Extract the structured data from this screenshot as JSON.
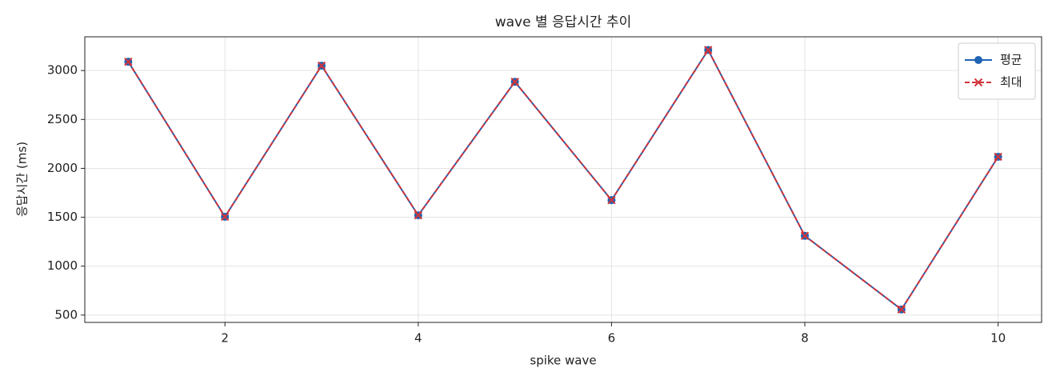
{
  "chart_data": {
    "type": "line",
    "title": "wave 별 응답시간 추이",
    "x_label": "spike wave",
    "y_label": "응답시간 (ms)",
    "x": [
      1,
      2,
      3,
      4,
      5,
      6,
      7,
      8,
      9,
      10
    ],
    "series": [
      {
        "name": "평균",
        "color": "#1f64b4",
        "marker": "o",
        "linestyle": "solid",
        "values": [
          3090,
          1505,
          3050,
          1520,
          2885,
          1675,
          3210,
          1310,
          557,
          2118
        ]
      },
      {
        "name": "최대",
        "color": "#d0343a",
        "marker": "x",
        "linestyle": "dashed",
        "values": [
          3090,
          1505,
          3050,
          1520,
          2885,
          1675,
          3210,
          1310,
          557,
          2118
        ]
      }
    ],
    "xlim": [
      0.55,
      10.45
    ],
    "ylim": [
      425,
      3345
    ],
    "xticks": [
      2,
      4,
      6,
      8,
      10
    ],
    "yticks": [
      500,
      1000,
      1500,
      2000,
      2500,
      3000
    ],
    "grid": true,
    "legend": "upper right"
  }
}
